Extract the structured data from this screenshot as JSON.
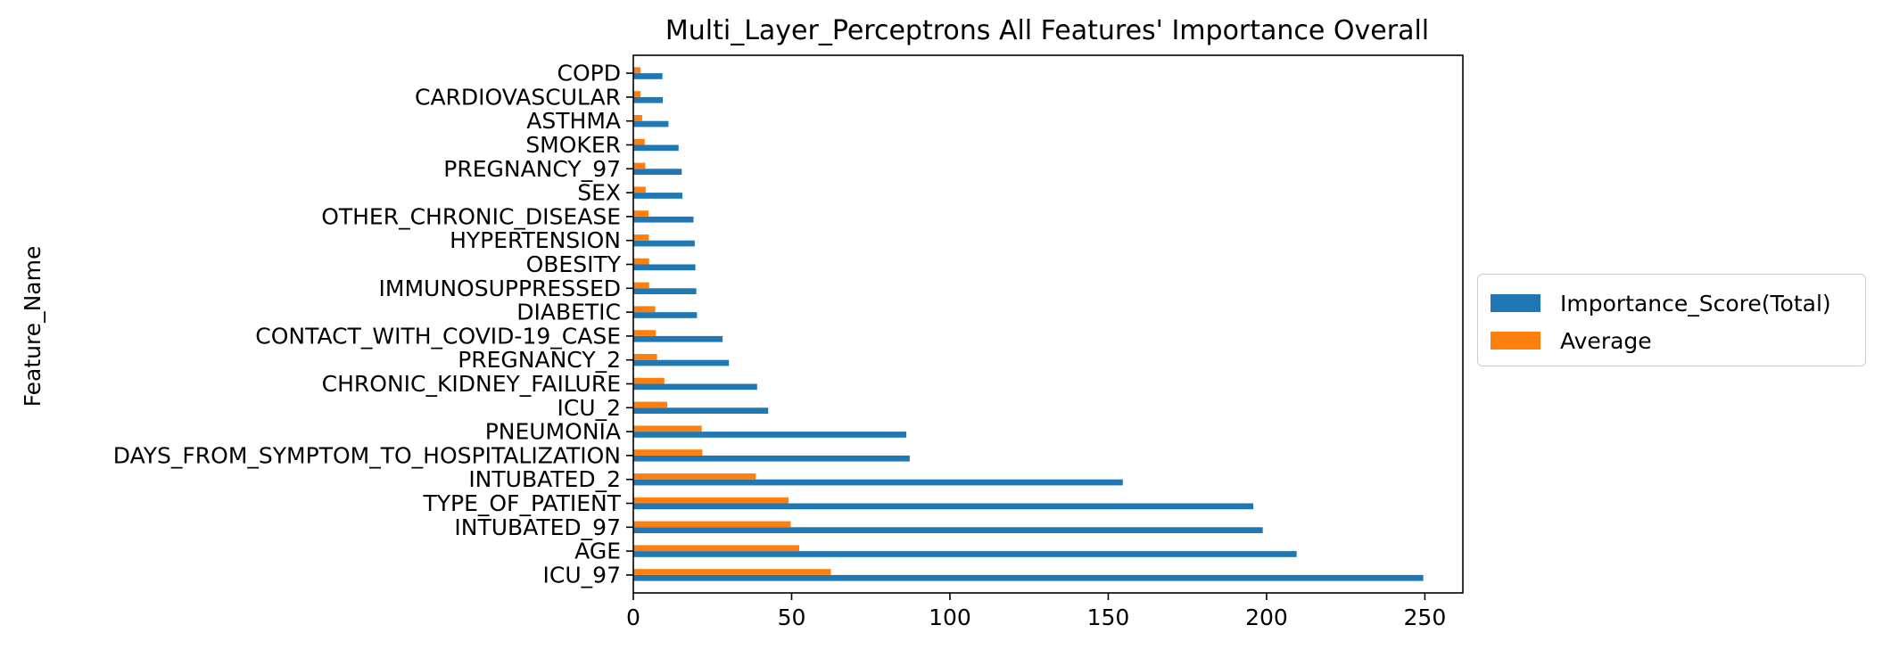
{
  "chart_data": {
    "type": "bar",
    "orientation": "horizontal",
    "title": "Multi_Layer_Perceptrons All Features' Importance Overall",
    "ylabel": "Feature_Name",
    "xlabel": "",
    "xlim": [
      0,
      262
    ],
    "x_ticks": [
      0,
      50,
      100,
      150,
      200,
      250
    ],
    "grid": false,
    "legend_position": "outside-right",
    "categories": [
      "ICU_97",
      "AGE",
      "INTUBATED_97",
      "TYPE_OF_PATIENT",
      "INTUBATED_2",
      "DAYS_FROM_SYMPTOM_TO_HOSPITALIZATION",
      "PNEUMONIA",
      "ICU_2",
      "CHRONIC_KIDNEY_FAILURE",
      "PREGNANCY_2",
      "CONTACT_WITH_COVID-19_CASE",
      "DIABETIC",
      "IMMUNOSUPPRESSED",
      "OBESITY",
      "HYPERTENSION",
      "OTHER_CHRONIC_DISEASE",
      "SEX",
      "PREGNANCY_97",
      "SMOKER",
      "ASTHMA",
      "CARDIOVASCULAR",
      "COPD"
    ],
    "series": [
      {
        "name": "Importance_Score(Total)",
        "color": "#1f77b4",
        "values": [
          249.5,
          209.5,
          198.8,
          195.8,
          154.6,
          87.3,
          86.2,
          42.6,
          39.1,
          30.2,
          28.2,
          20.1,
          19.9,
          19.6,
          19.4,
          19.0,
          15.5,
          15.3,
          14.3,
          11.1,
          9.3,
          9.2
        ]
      },
      {
        "name": "Average",
        "color": "#ff7f0e",
        "values": [
          62.4,
          52.4,
          49.7,
          49.0,
          38.7,
          21.8,
          21.6,
          10.7,
          9.8,
          7.5,
          7.1,
          6.9,
          5.0,
          5.0,
          4.9,
          4.8,
          3.9,
          3.8,
          3.6,
          2.8,
          2.3,
          2.3
        ]
      }
    ]
  }
}
